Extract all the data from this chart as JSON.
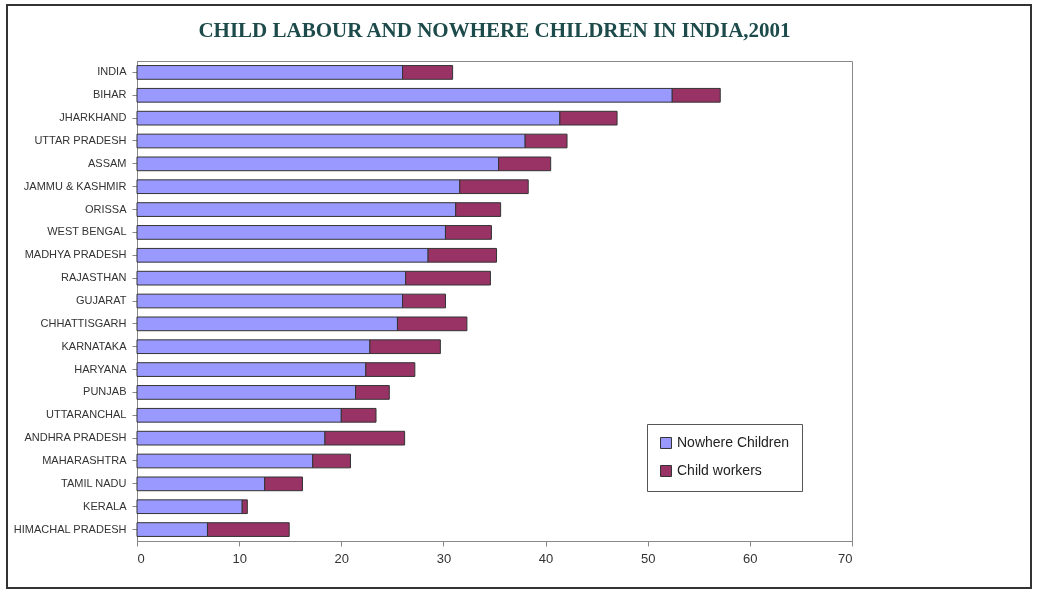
{
  "chart_data": {
    "type": "bar",
    "title": "CHILD LABOUR AND NOWHERE CHILDREN IN INDIA,2001",
    "orientation": "horizontal",
    "stacked": true,
    "legend": "bottom right",
    "grid": false,
    "categories": [
      "INDIA",
      "BIHAR",
      "JHARKHAND",
      "UTTAR PRADESH",
      "ASSAM",
      "JAMMU & KASHMIR",
      "ORISSA",
      "WEST BENGAL",
      "MADHYA PRADESH",
      "RAJASTHAN",
      "GUJARAT",
      "CHHATTISGARH",
      "KARNATAKA",
      "HARYANA",
      "PUNJAB",
      "UTTARANCHAL",
      "ANDHRA PRADESH",
      "MAHARASHTRA",
      "TAMIL NADU",
      "KERALA",
      "HIMACHAL PRADESH"
    ],
    "series": [
      {
        "name": "Nowhere Children",
        "color": "#9999ff",
        "values": [
          26.0,
          52.4,
          41.4,
          38.0,
          35.4,
          31.6,
          31.2,
          30.2,
          28.5,
          26.3,
          26.0,
          25.5,
          22.8,
          22.4,
          21.4,
          20.0,
          18.4,
          17.2,
          12.5,
          10.3,
          6.9
        ]
      },
      {
        "name": "Child workers",
        "color": "#993366",
        "values": [
          4.9,
          4.7,
          5.6,
          4.1,
          5.1,
          6.7,
          4.4,
          4.5,
          6.7,
          8.3,
          4.2,
          6.8,
          6.9,
          4.8,
          3.3,
          3.4,
          7.8,
          3.7,
          3.7,
          0.5,
          8.0
        ]
      }
    ],
    "xlim": [
      0,
      70
    ],
    "xticks": [
      0,
      10,
      20,
      30,
      40,
      50,
      60,
      70
    ]
  }
}
